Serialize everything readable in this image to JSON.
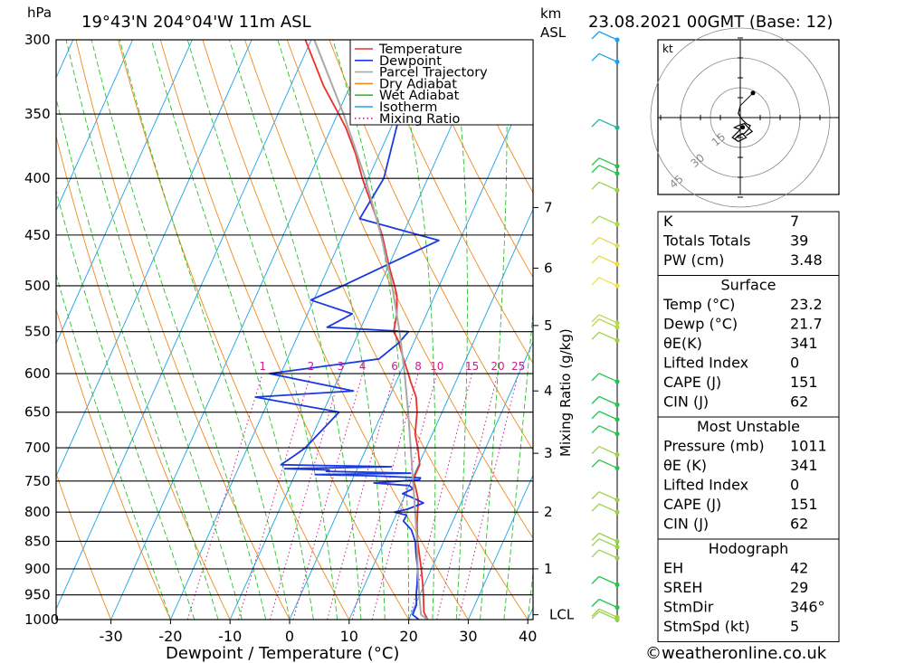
{
  "header": {
    "pressure_unit": "hPa",
    "location": "19°43'N  204°04'W  11m  ASL",
    "height_unit_line1": "km",
    "height_unit_line2": "ASL",
    "datetime": "23.08.2021  00GMT  (Base: 12)"
  },
  "chart_data": {
    "type": "line",
    "subtype": "skew-T log-P diagram",
    "xlabel": "Dewpoint / Temperature (°C)",
    "ylabel": "hPa",
    "mixing_ratio_axis_label": "Mixing Ratio (g/kg)",
    "x_ticks": [
      -30,
      -20,
      -10,
      0,
      10,
      20,
      30,
      40
    ],
    "pressure_levels": [
      300,
      350,
      400,
      450,
      500,
      550,
      600,
      650,
      700,
      750,
      800,
      850,
      900,
      950,
      1000
    ],
    "height_ticks_km": [
      {
        "label": "7",
        "p": 425
      },
      {
        "label": "6",
        "p": 482
      },
      {
        "label": "5",
        "p": 543
      },
      {
        "label": "4",
        "p": 622
      },
      {
        "label": "3",
        "p": 708
      },
      {
        "label": "2",
        "p": 800
      },
      {
        "label": "1",
        "p": 900
      },
      {
        "label": "LCL",
        "p": 990
      }
    ],
    "mixing_ratio_labels": [
      "1",
      "2",
      "3",
      "4",
      "6",
      "8",
      "10",
      "15",
      "20",
      "25"
    ],
    "mixing_ratio_values": [
      1,
      2,
      3,
      4,
      6,
      8,
      10,
      15,
      20,
      25
    ],
    "legend": {
      "placement": "top-center",
      "entries": [
        {
          "name": "Temperature",
          "color": "#e8312a",
          "style": "solid"
        },
        {
          "name": "Dewpoint",
          "color": "#1a39e0",
          "style": "solid"
        },
        {
          "name": "Parcel Trajectory",
          "color": "#a8a8a8",
          "style": "solid"
        },
        {
          "name": "Dry Adiabat",
          "color": "#f08a1c",
          "style": "solid"
        },
        {
          "name": "Wet Adiabat",
          "color": "#2cc02c",
          "style": "solid"
        },
        {
          "name": "Isotherm",
          "color": "#1aa3e8",
          "style": "solid"
        },
        {
          "name": "Mixing Ratio",
          "color": "#c8208c",
          "style": "dotted"
        }
      ]
    },
    "series": [
      {
        "name": "Temperature",
        "color": "#e8312a",
        "points": [
          [
            1000,
            23.2
          ],
          [
            985,
            22.0
          ],
          [
            950,
            20.6
          ],
          [
            925,
            19.5
          ],
          [
            900,
            18.3
          ],
          [
            850,
            15.6
          ],
          [
            820,
            14.2
          ],
          [
            800,
            13.4
          ],
          [
            780,
            12.6
          ],
          [
            760,
            11.2
          ],
          [
            750,
            10.4
          ],
          [
            740,
            10.2
          ],
          [
            725,
            10.2
          ],
          [
            700,
            8.6
          ],
          [
            680,
            7.1
          ],
          [
            650,
            5.8
          ],
          [
            630,
            4.5
          ],
          [
            610,
            2.4
          ],
          [
            600,
            1.4
          ],
          [
            580,
            -0.7
          ],
          [
            560,
            -2.8
          ],
          [
            550,
            -4.2
          ],
          [
            530,
            -5.0
          ],
          [
            510,
            -6.4
          ],
          [
            500,
            -7.5
          ],
          [
            480,
            -9.9
          ],
          [
            460,
            -12.2
          ],
          [
            450,
            -13.4
          ],
          [
            430,
            -16.3
          ],
          [
            410,
            -19.4
          ],
          [
            400,
            -21.0
          ],
          [
            380,
            -24.0
          ],
          [
            360,
            -27.6
          ],
          [
            350,
            -29.8
          ],
          [
            330,
            -34.5
          ],
          [
            300,
            -41.0
          ]
        ]
      },
      {
        "name": "Dewpoint",
        "color": "#1a39e0",
        "points": [
          [
            1000,
            21.7
          ],
          [
            990,
            20.3
          ],
          [
            970,
            20.2
          ],
          [
            950,
            19.4
          ],
          [
            925,
            18.6
          ],
          [
            900,
            17.7
          ],
          [
            875,
            16.4
          ],
          [
            850,
            15.2
          ],
          [
            830,
            13.7
          ],
          [
            815,
            11.7
          ],
          [
            805,
            11.8
          ],
          [
            800,
            9.5
          ],
          [
            795,
            11.5
          ],
          [
            785,
            13.7
          ],
          [
            775,
            11.1
          ],
          [
            770,
            9.5
          ],
          [
            762,
            10.9
          ],
          [
            757,
            10.0
          ],
          [
            753,
            3.9
          ],
          [
            748,
            11.3
          ],
          [
            745,
            11.3
          ],
          [
            742,
            3.3
          ],
          [
            740,
            -6.6
          ],
          [
            738,
            9.3
          ],
          [
            735,
            -5.0
          ],
          [
            733,
            -4.6
          ],
          [
            731,
            -12.2
          ],
          [
            728,
            5.6
          ],
          [
            725,
            -13.1
          ],
          [
            710,
            -11.4
          ],
          [
            700,
            -10.3
          ],
          [
            650,
            -7.3
          ],
          [
            630,
            -22.5
          ],
          [
            622,
            -6.5
          ],
          [
            600,
            -21.9
          ],
          [
            582,
            -4.6
          ],
          [
            563,
            -2.5
          ],
          [
            550,
            -1.7
          ],
          [
            545,
            -15.7
          ],
          [
            530,
            -12.5
          ],
          [
            515,
            -20.5
          ],
          [
            500,
            -16.2
          ],
          [
            455,
            -3.5
          ],
          [
            435,
            -18.4
          ],
          [
            400,
            -17.4
          ],
          [
            300,
            -22.0
          ]
        ]
      },
      {
        "name": "Parcel Trajectory",
        "color": "#a8a8a8",
        "points": [
          [
            1000,
            23.2
          ],
          [
            990,
            21.7
          ],
          [
            950,
            19.9
          ],
          [
            900,
            17.7
          ],
          [
            850,
            15.5
          ],
          [
            800,
            13.0
          ],
          [
            750,
            10.3
          ],
          [
            700,
            7.4
          ],
          [
            650,
            4.3
          ],
          [
            600,
            0.8
          ],
          [
            550,
            -3.2
          ],
          [
            500,
            -7.9
          ],
          [
            450,
            -13.6
          ],
          [
            400,
            -20.5
          ],
          [
            350,
            -29.0
          ],
          [
            300,
            -39.5
          ]
        ]
      }
    ],
    "dry_adiabats_theta_C": [
      -40,
      -30,
      -20,
      -10,
      0,
      10,
      20,
      30,
      40,
      50,
      60,
      70,
      80,
      90,
      100,
      110,
      120,
      130,
      140,
      150,
      160,
      170,
      180,
      190,
      200
    ],
    "wet_adiabats_theta_C": [
      -20,
      -16,
      -12,
      -8,
      -4,
      0,
      4,
      8,
      12,
      16,
      20,
      24,
      28,
      32,
      36,
      40
    ],
    "isotherms_C": [
      -110,
      -100,
      -90,
      -80,
      -70,
      -60,
      -50,
      -40,
      -30,
      -20,
      -10,
      0,
      10,
      20,
      30,
      40
    ],
    "wind_profile": [
      {
        "p": 300,
        "color": "#1aa3e8"
      },
      {
        "p": 314,
        "color": "#1aa3e8"
      },
      {
        "p": 360,
        "color": "#1ab8a0"
      },
      {
        "p": 390,
        "color": "#22c44a"
      },
      {
        "p": 396,
        "color": "#22c44a"
      },
      {
        "p": 410,
        "color": "#9ad14a"
      },
      {
        "p": 440,
        "color": "#a8d84a"
      },
      {
        "p": 460,
        "color": "#e0d84a"
      },
      {
        "p": 478,
        "color": "#f0d84a"
      },
      {
        "p": 500,
        "color": "#f0e04a"
      },
      {
        "p": 540,
        "color": "#b8d84a"
      },
      {
        "p": 545,
        "color": "#b8d84a"
      },
      {
        "p": 560,
        "color": "#9ad14a"
      },
      {
        "p": 610,
        "color": "#22c44a"
      },
      {
        "p": 640,
        "color": "#22c44a"
      },
      {
        "p": 660,
        "color": "#22c44a"
      },
      {
        "p": 680,
        "color": "#22c44a"
      },
      {
        "p": 710,
        "color": "#9ad14a"
      },
      {
        "p": 730,
        "color": "#22c44a"
      },
      {
        "p": 780,
        "color": "#9ad14a"
      },
      {
        "p": 800,
        "color": "#9ad14a"
      },
      {
        "p": 850,
        "color": "#9ad14a"
      },
      {
        "p": 860,
        "color": "#9ad14a"
      },
      {
        "p": 880,
        "color": "#9ad14a"
      },
      {
        "p": 930,
        "color": "#22c44a"
      },
      {
        "p": 975,
        "color": "#22c44a"
      },
      {
        "p": 995,
        "color": "#9ad14a"
      },
      {
        "p": 1000,
        "color": "#9ad14a"
      }
    ]
  },
  "hodograph": {
    "unit_label": "kt",
    "ring_labels": [
      "15",
      "30",
      "45"
    ],
    "ring_speeds_kt": [
      15,
      30,
      45
    ],
    "trace_kt": [
      [
        0,
        6
      ],
      [
        -1,
        2
      ],
      [
        1,
        -1
      ],
      [
        3,
        -3
      ],
      [
        5,
        -4
      ],
      [
        4,
        -6
      ],
      [
        2,
        -8
      ],
      [
        -1,
        -9
      ],
      [
        -3,
        -11
      ],
      [
        -2,
        -10
      ],
      [
        1,
        -8
      ],
      [
        3,
        -10
      ],
      [
        -1,
        -12
      ],
      [
        -4,
        -10
      ],
      [
        -2,
        -8
      ],
      [
        0,
        -6
      ],
      [
        -3,
        -5
      ],
      [
        -1,
        -4
      ],
      [
        2,
        -3
      ],
      [
        4,
        -5
      ],
      [
        6,
        -7
      ],
      [
        3,
        -9
      ]
    ],
    "storm_motion_kt": [
      1.2,
      -4.9
    ]
  },
  "indices": {
    "basic": [
      {
        "label": "K",
        "value": "7"
      },
      {
        "label": "Totals Totals",
        "value": "39"
      },
      {
        "label": "PW (cm)",
        "value": "3.48"
      }
    ],
    "surface_title": "Surface",
    "surface": [
      {
        "label": "Temp (°C)",
        "value": "23.2"
      },
      {
        "label": "Dewp (°C)",
        "value": "21.7"
      },
      {
        "label": "θE(K)",
        "value": "341"
      },
      {
        "label": "Lifted Index",
        "value": "0"
      },
      {
        "label": "CAPE (J)",
        "value": "151"
      },
      {
        "label": "CIN (J)",
        "value": "62"
      }
    ],
    "unstable_title": "Most Unstable",
    "unstable": [
      {
        "label": "Pressure (mb)",
        "value": "1011"
      },
      {
        "label": "θE (K)",
        "value": "341"
      },
      {
        "label": "Lifted Index",
        "value": "0"
      },
      {
        "label": "CAPE (J)",
        "value": "151"
      },
      {
        "label": "CIN (J)",
        "value": "62"
      }
    ],
    "hodo_title": "Hodograph",
    "hodo": [
      {
        "label": "EH",
        "value": "42"
      },
      {
        "label": "SREH",
        "value": "29"
      },
      {
        "label": "StmDir",
        "value": "346°"
      },
      {
        "label": "StmSpd (kt)",
        "value": "5"
      }
    ]
  },
  "footer": {
    "credit": "©weatheronline.co.uk"
  }
}
